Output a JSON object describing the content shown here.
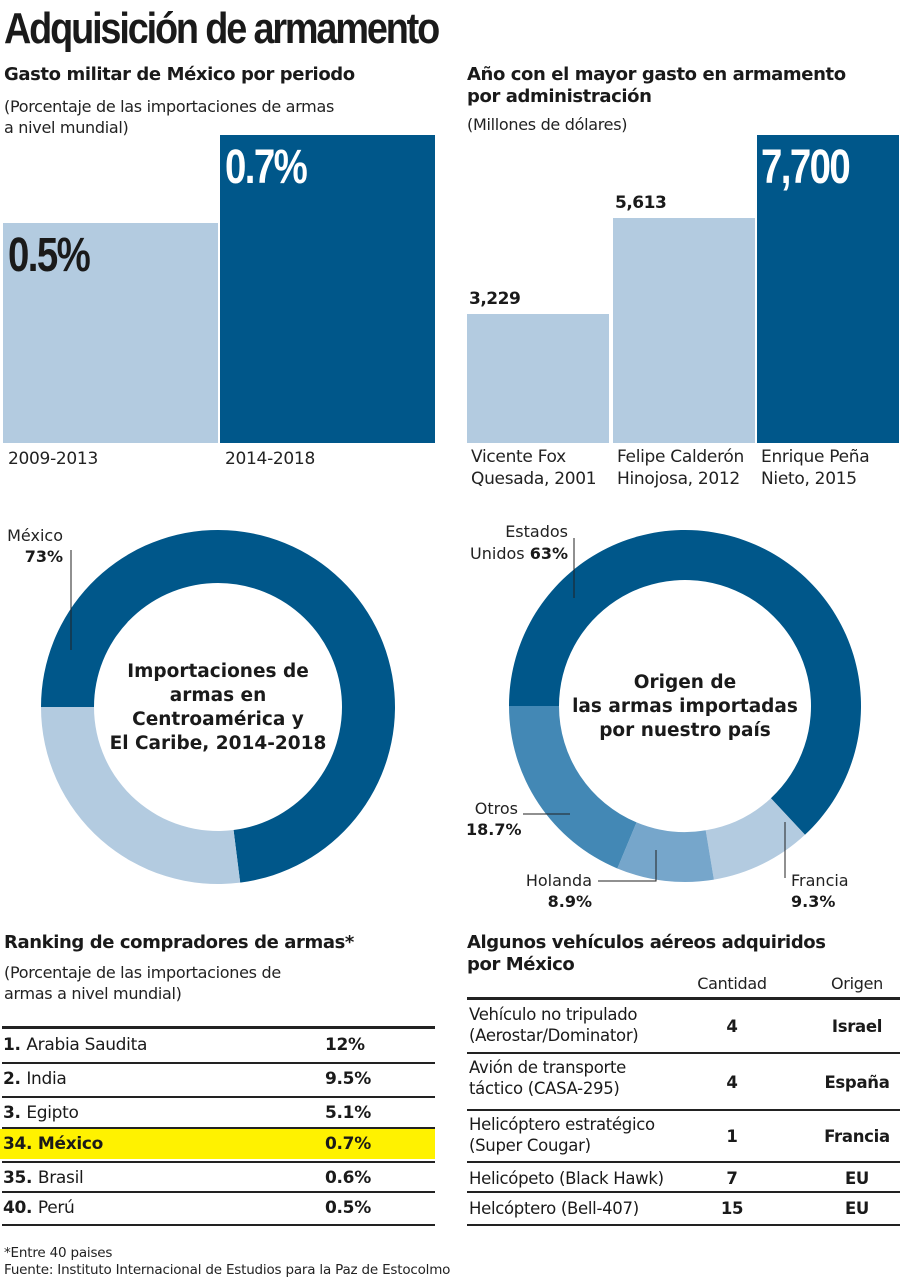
{
  "title": "Adquisición de armamento",
  "colors": {
    "dark_blue": "#00578a",
    "light_blue": "#b3cbe0",
    "medium_blue": "#4388b5",
    "soft_blue": "#76a6cb",
    "highlight": "#fff200"
  },
  "chart_data": [
    {
      "type": "bar",
      "title": "Gasto militar de México por periodo",
      "subtitle": "(Porcentaje de las importaciones de armas a nivel mundial)",
      "categories": [
        "2009-2013",
        "2014-2018"
      ],
      "values": [
        0.5,
        0.7
      ],
      "value_labels": [
        "0.5%",
        "0.7%"
      ],
      "unit": "%",
      "ylim": [
        0,
        0.7
      ],
      "grid": false
    },
    {
      "type": "bar",
      "title": "Año con el mayor gasto en armamento por administración",
      "subtitle": "(Millones de dólares)",
      "categories": [
        "Vicente Fox Quesada, 2001",
        "Felipe Calderón Hinojosa, 2012",
        "Enrique Peña Nieto, 2015"
      ],
      "category_lines": [
        [
          "Vicente Fox",
          "Quesada, 2001"
        ],
        [
          "Felipe Calderón",
          "Hinojosa, 2012"
        ],
        [
          "Enrique Peña",
          "Nieto, 2015"
        ]
      ],
      "values": [
        3229,
        5613,
        7700
      ],
      "value_labels": [
        "3,229",
        "5,613",
        "7,700"
      ],
      "ylim": [
        0,
        7700
      ],
      "grid": false
    },
    {
      "type": "pie",
      "donut": true,
      "title": "Importaciones de armas en Centroamérica y El Caribe, 2014-2018",
      "title_lines": [
        "Importaciones de",
        "armas en",
        "Centroamérica y",
        "El Caribe, 2014-2018"
      ],
      "slices": [
        {
          "label": "México",
          "value": 73,
          "value_label": "73%",
          "labeled": true
        },
        {
          "label": "",
          "value": 27,
          "value_label": "",
          "labeled": false
        }
      ]
    },
    {
      "type": "pie",
      "donut": true,
      "title": "Origen de las armas importadas por nuestro país",
      "title_lines": [
        "Origen de",
        "las armas importadas",
        "por nuestro país"
      ],
      "slices": [
        {
          "label": "Estados Unidos",
          "label_lines": [
            "Estados",
            "Unidos"
          ],
          "value": 63,
          "value_label": "63%"
        },
        {
          "label": "Francia",
          "value": 9.3,
          "value_label": "9.3%"
        },
        {
          "label": "Holanda",
          "value": 8.9,
          "value_label": "8.9%"
        },
        {
          "label": "Otros",
          "value": 18.7,
          "value_label": "18.7%"
        }
      ]
    },
    {
      "type": "table",
      "title": "Ranking de compradores de armas*",
      "subtitle": "(Porcentaje de las importaciones de armas a nivel mundial)",
      "rows": [
        {
          "rank": "1.",
          "country": "Arabia Saudita",
          "value": "12%",
          "highlight": false
        },
        {
          "rank": "2.",
          "country": "India",
          "value": "9.5%",
          "highlight": false
        },
        {
          "rank": "3.",
          "country": "Egipto",
          "value": "5.1%",
          "highlight": false
        },
        {
          "rank": "34.",
          "country": "México",
          "value": "0.7%",
          "highlight": true
        },
        {
          "rank": "35.",
          "country": "Brasil",
          "value": "0.6%",
          "highlight": false
        },
        {
          "rank": "40.",
          "country": "Perú",
          "value": "0.5%",
          "highlight": false
        }
      ]
    },
    {
      "type": "table",
      "title": "Algunos vehículos aéreos adquiridos por México",
      "columns": [
        "",
        "Cantidad",
        "Origen"
      ],
      "rows": [
        {
          "name_lines": [
            "Vehículo no tripulado",
            "(Aerostar/Dominator)"
          ],
          "qty": "4",
          "origin": "Israel"
        },
        {
          "name_lines": [
            "Avión de transporte",
            "táctico (CASA-295)"
          ],
          "qty": "4",
          "origin": "España"
        },
        {
          "name_lines": [
            "Helicóptero estratégico",
            "(Super Cougar)"
          ],
          "qty": "1",
          "origin": "Francia"
        },
        {
          "name_lines": [
            "Helicópeto (Black Hawk)"
          ],
          "qty": "7",
          "origin": "EU"
        },
        {
          "name_lines": [
            "Helcóptero (Bell-407)"
          ],
          "qty": "15",
          "origin": "EU"
        }
      ]
    }
  ],
  "left_bars": {
    "title": "Gasto militar de México por periodo",
    "sub1": "(Porcentaje de las importaciones de armas",
    "sub2": "a nivel mundial)"
  },
  "right_bars": {
    "title1": "Año con el mayor gasto en armamento",
    "title2": "por administración",
    "sub": "(Millones de dólares)"
  },
  "ranking": {
    "title": "Ranking de compradores de armas*",
    "sub1": "(Porcentaje de las importaciones de",
    "sub2": "armas a nivel mundial)"
  },
  "vehicles": {
    "title1": "Algunos vehículos aéreos adquiridos",
    "title2": "por México",
    "col_qty": "Cantidad",
    "col_origin": "Origen"
  },
  "footer": {
    "note": "*Entre 40 paises",
    "source": "Fuente: Instituto Internacional de Estudios para la Paz de Estocolmo"
  }
}
